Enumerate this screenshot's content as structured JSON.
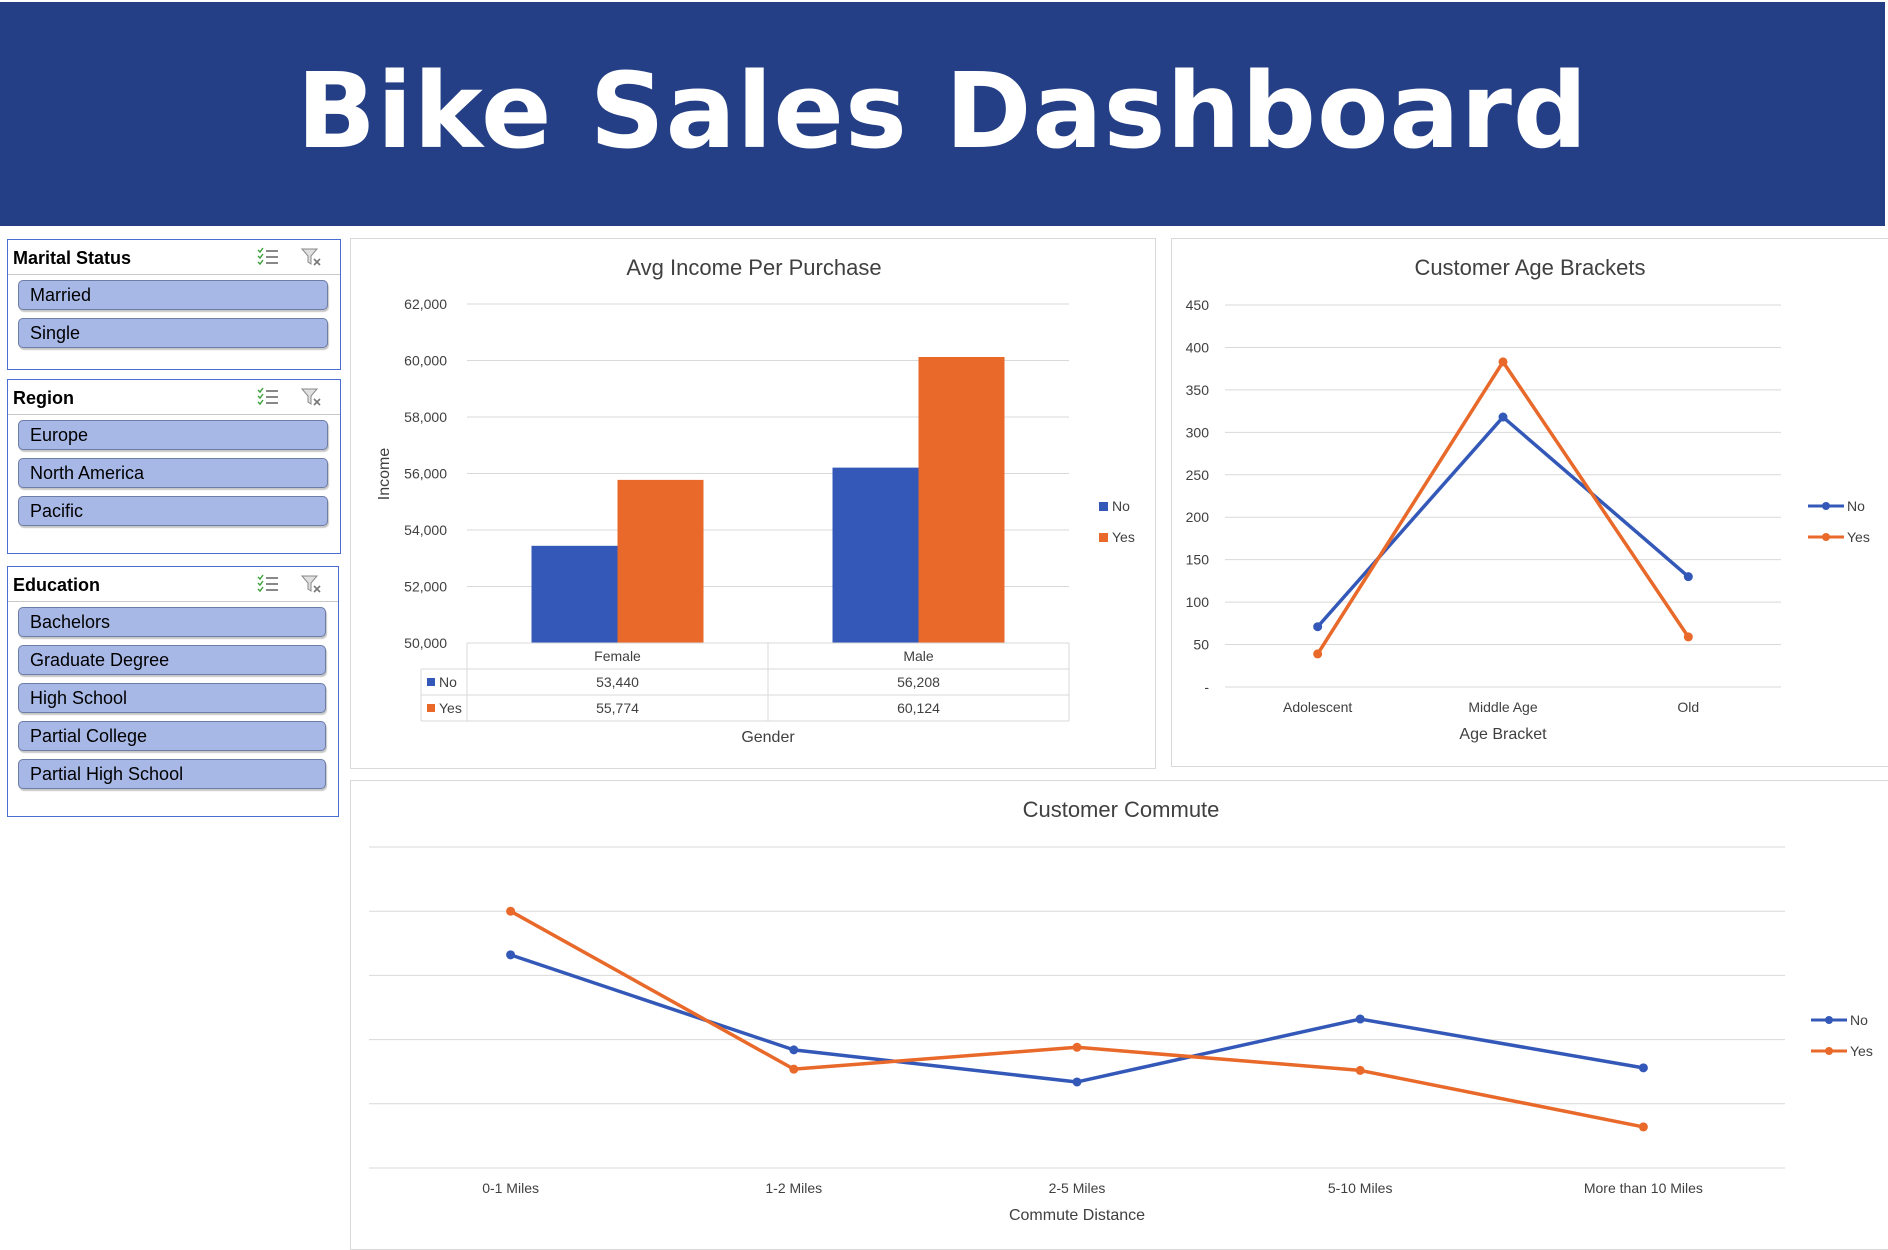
{
  "header": {
    "title": "Bike Sales Dashboard"
  },
  "colors": {
    "header_bg": "#243f85",
    "series_no": "#3358b8",
    "series_yes": "#e8692a",
    "slicer_item_bg": "#a8b8e6"
  },
  "slicers": [
    {
      "title": "Marital Status",
      "items": [
        "Married",
        "Single"
      ]
    },
    {
      "title": "Region",
      "items": [
        "Europe",
        "North America",
        "Pacific"
      ]
    },
    {
      "title": "Education",
      "items": [
        "Bachelors",
        "Graduate Degree",
        "High School",
        "Partial College",
        "Partial High School"
      ]
    }
  ],
  "chart_data": [
    {
      "type": "bar",
      "title": "Avg Income Per Purchase",
      "xlabel": "Gender",
      "ylabel": "Income",
      "categories": [
        "Female",
        "Male"
      ],
      "series": [
        {
          "name": "No",
          "values": [
            53440,
            56208
          ],
          "labels": [
            "53,440",
            "56,208"
          ]
        },
        {
          "name": "Yes",
          "values": [
            55774,
            60124
          ],
          "labels": [
            "55,774",
            "60,124"
          ]
        }
      ],
      "ylim": [
        50000,
        62000
      ],
      "yticks": [
        "50,000",
        "52,000",
        "54,000",
        "56,000",
        "58,000",
        "60,000",
        "62,000"
      ],
      "legend": "right",
      "data_table": true
    },
    {
      "type": "line",
      "title": "Customer Age Brackets",
      "xlabel": "Age Bracket",
      "ylabel": "",
      "categories": [
        "Adolescent",
        "Middle Age",
        "Old"
      ],
      "series": [
        {
          "name": "No",
          "values": [
            71,
            318,
            130
          ]
        },
        {
          "name": "Yes",
          "values": [
            39,
            383,
            59
          ]
        }
      ],
      "ylim": [
        0,
        450
      ],
      "yticks": [
        "-",
        "50",
        "100",
        "150",
        "200",
        "250",
        "300",
        "350",
        "400",
        "450"
      ],
      "legend": "right"
    },
    {
      "type": "line",
      "title": "Customer Commute",
      "xlabel": "Commute Distance",
      "ylabel": "",
      "categories": [
        "0-1 Miles",
        "1-2 Miles",
        "2-5 Miles",
        "5-10 Miles",
        "More than 10 Miles"
      ],
      "series": [
        {
          "name": "No",
          "values": [
            166,
            92,
            67,
            116,
            78
          ]
        },
        {
          "name": "Yes",
          "values": [
            200,
            77,
            94,
            76,
            32
          ]
        }
      ],
      "ylim": [
        0,
        250
      ],
      "grid_lines": 5,
      "legend": "right"
    }
  ]
}
